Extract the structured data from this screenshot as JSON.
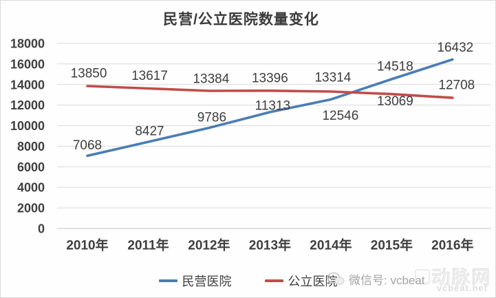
{
  "frame": {
    "background": "#fefefe",
    "border_color": "#d9d9d9"
  },
  "chart_data": {
    "type": "line",
    "title": "民营/公立医院数量变化",
    "categories": [
      "2010年",
      "2011年",
      "2012年",
      "2013年",
      "2014年",
      "2015年",
      "2016年"
    ],
    "series": [
      {
        "name": "民营医院",
        "color": "#4a7db6",
        "values": [
          7068,
          8427,
          9786,
          11313,
          12546,
          14518,
          16432
        ],
        "label_dx": [
          0,
          2,
          4,
          4,
          14,
          5,
          4
        ],
        "label_dy": [
          -15,
          -15,
          -15,
          -9,
          24,
          -18,
          -17
        ]
      },
      {
        "name": "公立医院",
        "color": "#bf4d4a",
        "values": [
          13850,
          13617,
          13384,
          13396,
          13314,
          13069,
          12708
        ],
        "label_dx": [
          2,
          2,
          3,
          0,
          3,
          5,
          6
        ],
        "label_dy": [
          -18,
          -18,
          -17,
          -18,
          -20,
          11,
          -18
        ]
      }
    ],
    "ylim": [
      0,
      18000
    ],
    "yticks": [
      0,
      2000,
      4000,
      6000,
      8000,
      10000,
      12000,
      14000,
      16000,
      18000
    ],
    "grid": true,
    "gridline_color": "#d9d9d9",
    "axis_line_color": "#c3c3c3",
    "axis_text_color": "#3f3f3f",
    "legend_position": "bottom"
  },
  "legend": {
    "items": [
      {
        "label": "民营医院",
        "color": "#4a7db6"
      },
      {
        "label": "公立医院",
        "color": "#bf4d4a"
      }
    ]
  },
  "watermark": {
    "wechat_label": "微信号: vcbeat",
    "logo_text": "动脉网",
    "domain": "vcbeat.net"
  }
}
